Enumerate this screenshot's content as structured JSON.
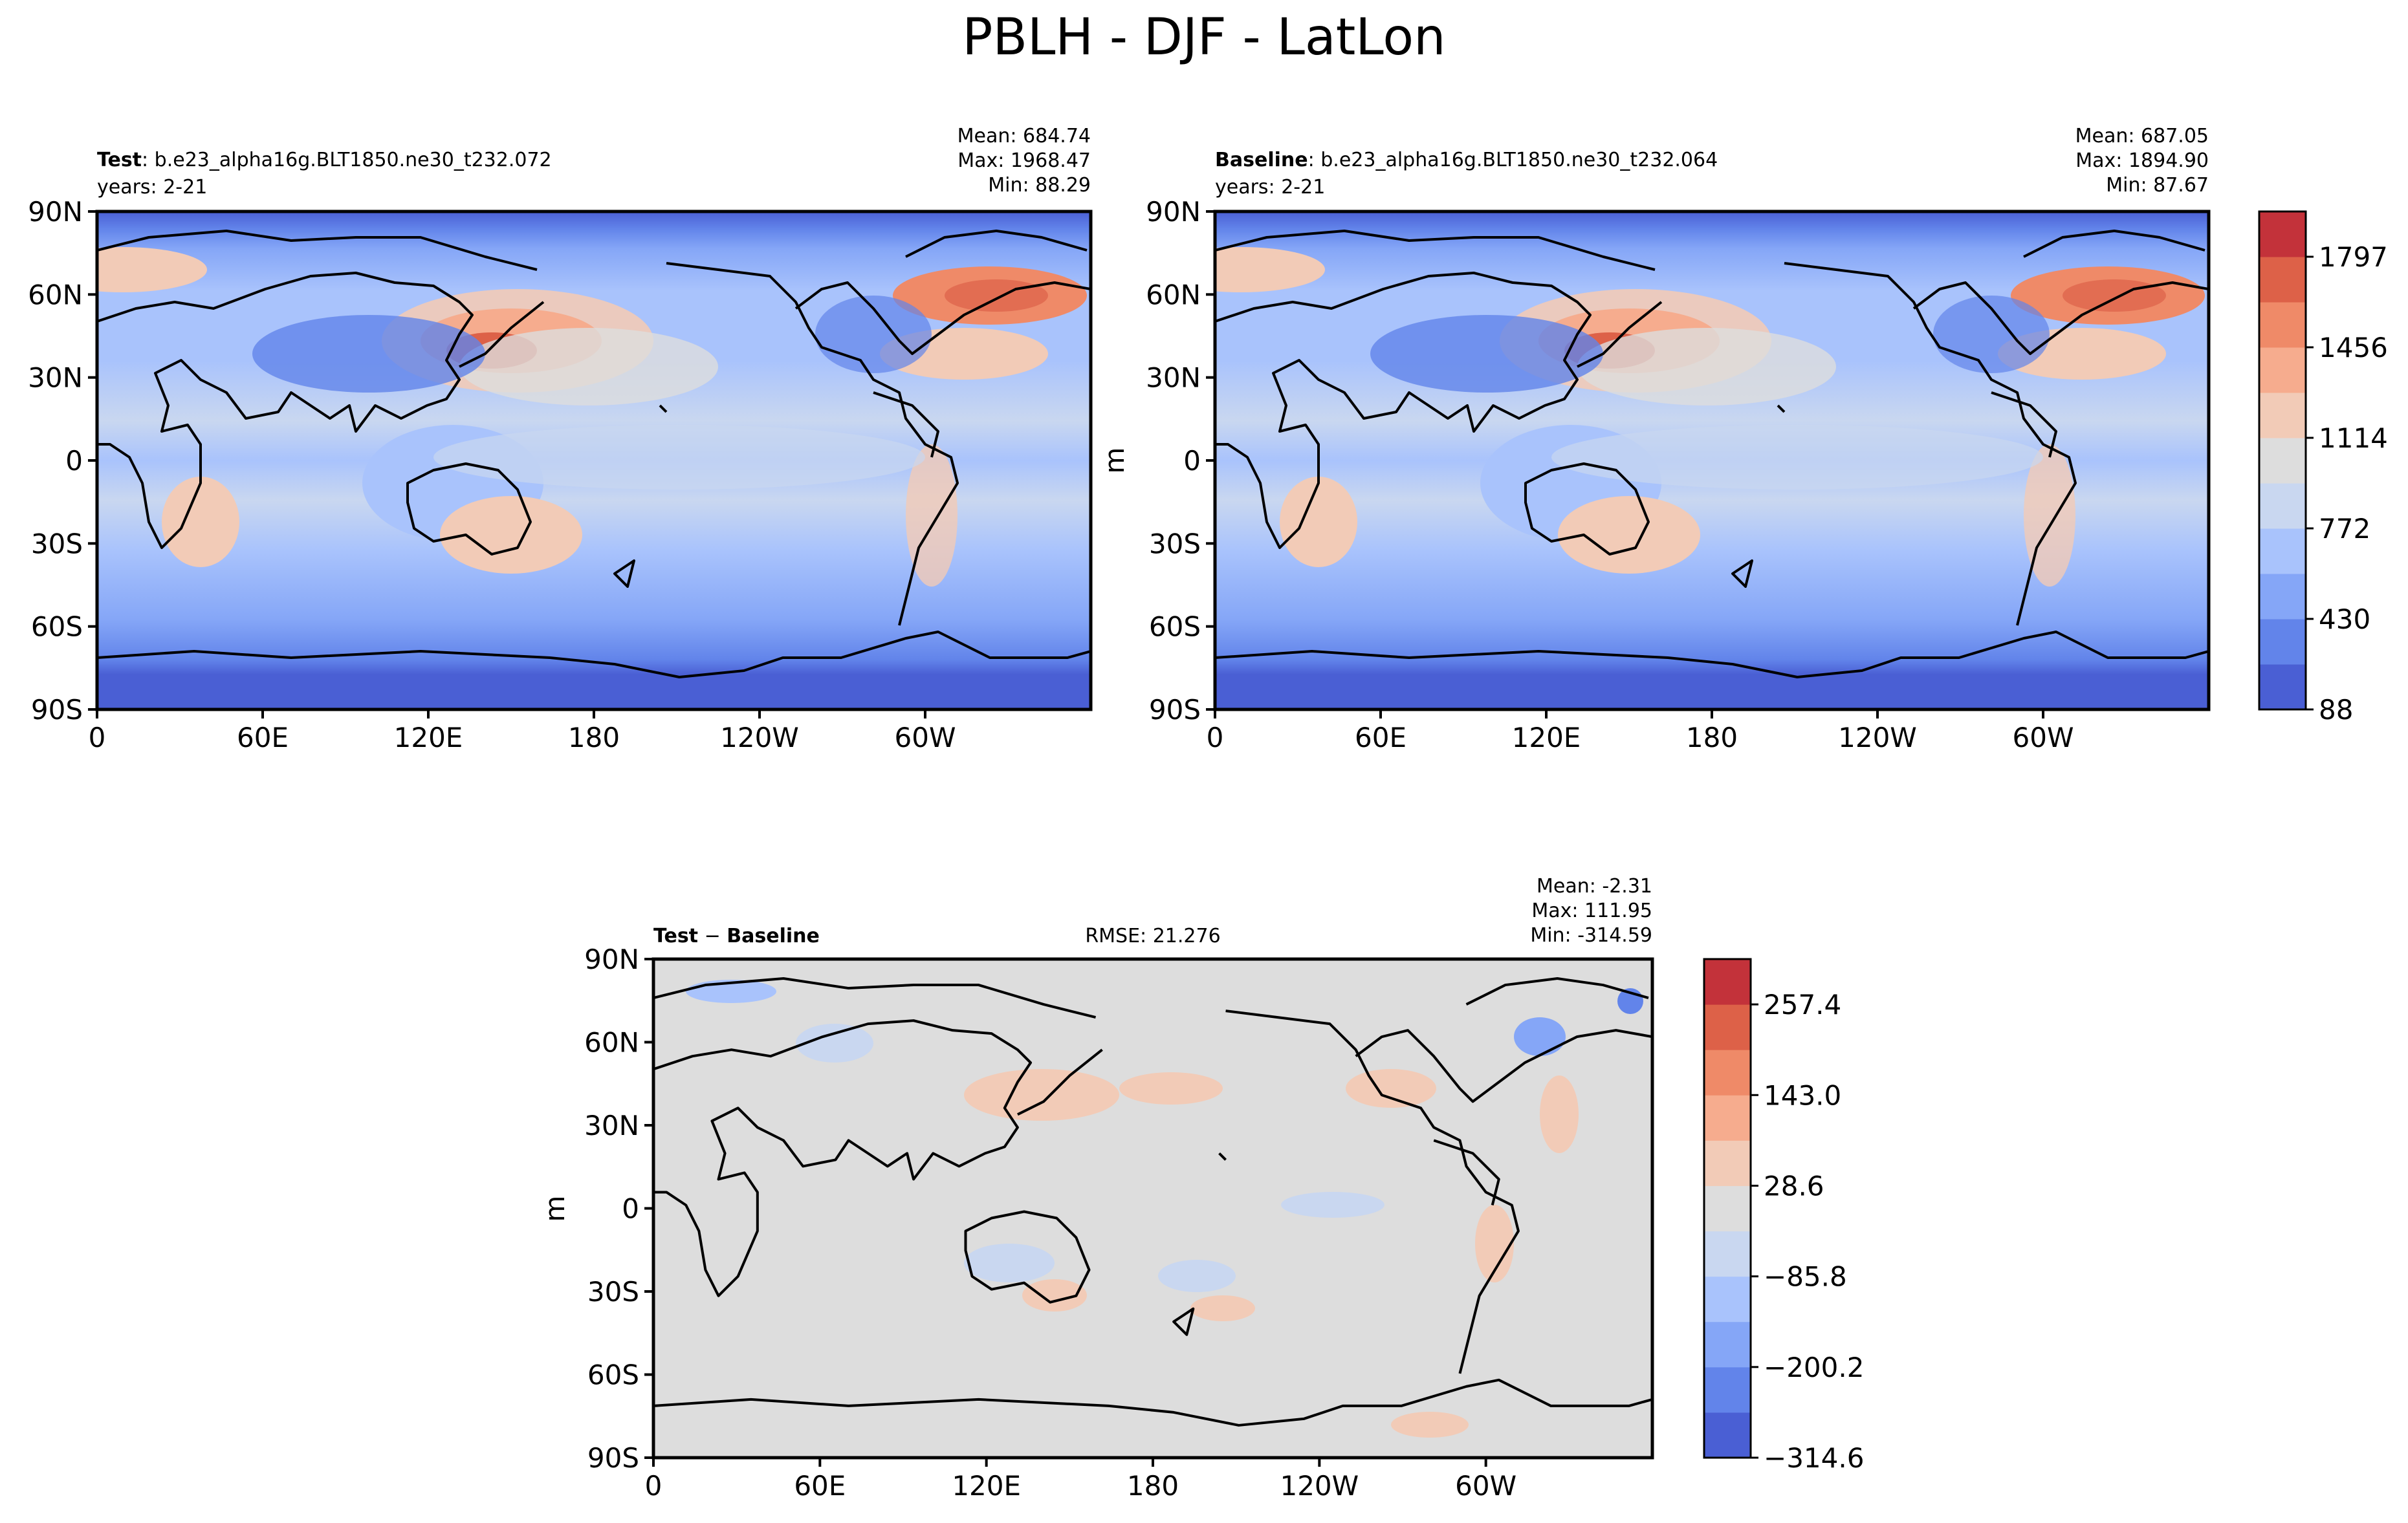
{
  "figure_title": "PBLH - DJF - LatLon",
  "colors": {
    "land": "#f6f6f6",
    "coast": "#000000",
    "frame": "#000000",
    "diff_background": "#dddddd"
  },
  "panels": [
    {
      "key": "test",
      "label_bold": "Test",
      "label_rest": ": b.e23_alpha16g.BLT1850.ne30_t232.072",
      "years": "years: 2-21",
      "stats": [
        "Mean: 684.74",
        "Max: 1968.47",
        "Min: 88.29"
      ],
      "rmse": ""
    },
    {
      "key": "baseline",
      "label_bold": "Baseline",
      "label_rest": ": b.e23_alpha16g.BLT1850.ne30_t232.064",
      "years": "years: 2-21",
      "stats": [
        "Mean: 687.05",
        "Max: 1894.90",
        "Min: 87.67"
      ],
      "rmse": ""
    },
    {
      "key": "diff",
      "label_bold": "Test",
      "label_mid": " − ",
      "label_bold2": "Baseline",
      "years": "",
      "stats": [
        "Mean: -2.31",
        "Max: 111.95",
        "Min: -314.59"
      ],
      "rmse": "RMSE: 21.276"
    }
  ],
  "axes": {
    "lat_ticks": [
      "90N",
      "60N",
      "30N",
      "0",
      "30S",
      "60S",
      "90S"
    ],
    "lon_ticks": [
      "0",
      "60E",
      "120E",
      "180",
      "120W",
      "60W"
    ]
  },
  "colorbars": [
    {
      "key": "main",
      "unit": "m",
      "colors": [
        "#4a5fd4",
        "#6284ea",
        "#85a6f7",
        "#a9c3fc",
        "#c9d7f0",
        "#dddddd",
        "#f2cbb7",
        "#f6ac8e",
        "#ef8a68",
        "#dd6148",
        "#c3323a"
      ],
      "tick_labels": [
        "1797",
        "1456",
        "1114",
        "772",
        "430",
        "88"
      ]
    },
    {
      "key": "diff",
      "unit": "m",
      "colors": [
        "#4a5fd4",
        "#6284ea",
        "#85a6f7",
        "#a9c3fc",
        "#c9d7f0",
        "#dddddd",
        "#f2cbb7",
        "#f6ac8e",
        "#ef8a68",
        "#dd6148",
        "#c3323a"
      ],
      "tick_labels": [
        "257.4",
        "143.0",
        "28.6",
        "−85.8",
        "−200.2",
        "−314.6"
      ]
    }
  ],
  "chart_data": {
    "type": "heatmap",
    "title": "PBLH - DJF - LatLon",
    "variable_unit": "m",
    "projection": "PlateCarree, central longitude 180",
    "panels": [
      {
        "name": "Test",
        "case": "b.e23_alpha16g.BLT1850.ne30_t232.072",
        "years": "2-21",
        "mean": 684.74,
        "max": 1968.47,
        "min": 88.29,
        "colorbar_ticks": [
          88,
          430,
          772,
          1114,
          1456,
          1797
        ]
      },
      {
        "name": "Baseline",
        "case": "b.e23_alpha16g.BLT1850.ne30_t232.064",
        "years": "2-21",
        "mean": 687.05,
        "max": 1894.9,
        "min": 87.67,
        "colorbar_ticks": [
          88,
          430,
          772,
          1114,
          1456,
          1797
        ]
      },
      {
        "name": "Test − Baseline",
        "mean": -2.31,
        "max": 111.95,
        "min": -314.59,
        "rmse": 21.276,
        "colorbar_ticks": [
          -314.6,
          -200.2,
          -85.8,
          28.6,
          143.0,
          257.4
        ]
      }
    ],
    "lat_ticks": [
      "90N",
      "60N",
      "30N",
      "0",
      "30S",
      "60S",
      "90S"
    ],
    "lon_ticks": [
      "0",
      "60E",
      "120E",
      "180",
      "120W",
      "60W"
    ]
  }
}
